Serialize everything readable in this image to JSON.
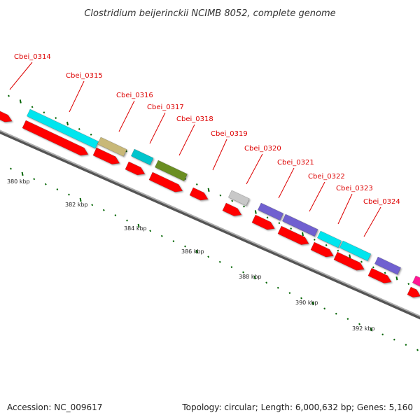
{
  "title": "Clostridium beijerinckii NCIMB 8052, complete genome",
  "footer": {
    "accession": "Accession: NC_009617",
    "summary": "Topology: circular; Length: 6,000,632 bp; Genes: 5,160"
  },
  "ruler_labels": [
    "380 kbp",
    "382 kbp",
    "384 kbp",
    "386 kbp",
    "388 kbp",
    "390 kbp",
    "392 kbp"
  ],
  "gene_labels": [
    "Cbei_0314",
    "Cbei_0315",
    "Cbei_0316",
    "Cbei_0317",
    "Cbei_0318",
    "Cbei_0319",
    "Cbei_0320",
    "Cbei_0321",
    "Cbei_0322",
    "Cbei_0323",
    "Cbei_0324"
  ],
  "colors": {
    "cds": "#ff0000",
    "cyan": "#00e5ee",
    "tan": "#c8b878",
    "teal": "#00c5cd",
    "olive": "#6b8e23",
    "grey": "#c8c8c8",
    "purple": "#7060d0",
    "magenta": "#ff1493",
    "tick": "#006400",
    "label": "#dd0000",
    "backbone": "#808080"
  }
}
